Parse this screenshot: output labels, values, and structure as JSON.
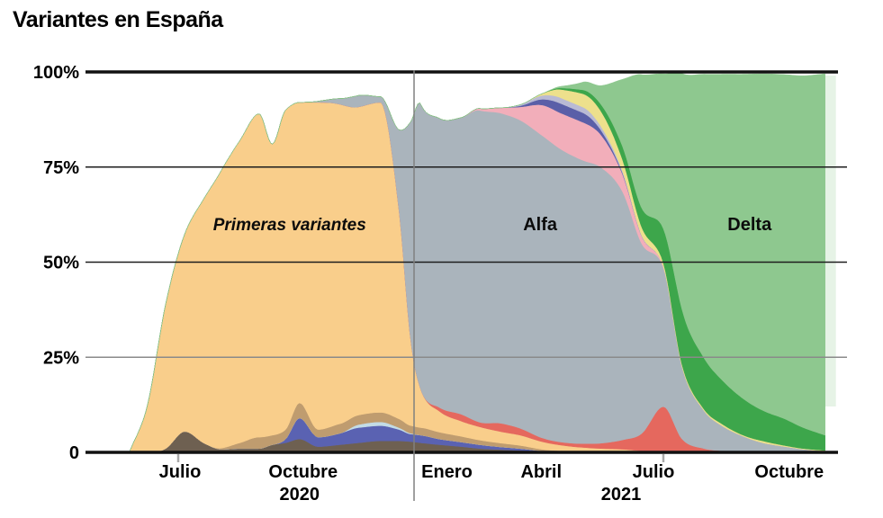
{
  "header": {
    "title": "Variantes en España"
  },
  "chart_data": {
    "type": "area",
    "subtype": "stacked-area-100pct",
    "title": "Variantes en España",
    "xlabel": "",
    "ylabel": "",
    "ylim": [
      0,
      100
    ],
    "grid": true,
    "legend_position": "none",
    "y_axis": {
      "ticks": [
        {
          "label": "100%",
          "pct": 100
        },
        {
          "label": "75%",
          "pct": 75
        },
        {
          "label": "50%",
          "pct": 50
        },
        {
          "label": "25%",
          "pct": 25
        },
        {
          "label": "0",
          "pct": 0
        }
      ]
    },
    "x_axis": {
      "ticks": [
        {
          "label": "Julio",
          "date": "2020-07-01",
          "tick_mark": true
        },
        {
          "label": "Octubre",
          "date": "2020-10-01",
          "tick_mark": false
        },
        {
          "label": "Enero",
          "date": "2021-01-01",
          "tick_mark": false
        },
        {
          "label": "Abril",
          "date": "2021-04-01",
          "tick_mark": false
        },
        {
          "label": "Julio",
          "date": "2021-07-01",
          "tick_mark": true
        },
        {
          "label": "Octubre",
          "date": "2021-10-01",
          "tick_mark": false
        }
      ],
      "year_labels": [
        {
          "text": "2020",
          "date": "2020-10-01"
        },
        {
          "text": "2021",
          "date": "2021-05-30"
        }
      ],
      "year_divider": {
        "date": "2021-01-01"
      }
    },
    "annotations": [
      {
        "text": "Primeras variantes",
        "date": "2020-09-24",
        "pct": 60,
        "italic": true
      },
      {
        "text": "Alfa",
        "date": "2021-03-30",
        "pct": 60,
        "italic": false
      },
      {
        "text": "Delta",
        "date": "2021-09-05",
        "pct": 60,
        "italic": false
      }
    ],
    "dates": [
      "2020-05-25",
      "2020-06-08",
      "2020-06-22",
      "2020-07-06",
      "2020-07-20",
      "2020-08-03",
      "2020-08-17",
      "2020-09-01",
      "2020-09-11",
      "2020-09-21",
      "2020-10-01",
      "2020-10-15",
      "2020-11-01",
      "2020-11-15",
      "2020-12-01",
      "2020-12-15",
      "2020-12-24",
      "2021-01-01",
      "2021-01-15",
      "2021-02-01",
      "2021-02-15",
      "2021-03-01",
      "2021-03-15",
      "2021-04-01",
      "2021-04-15",
      "2021-05-01",
      "2021-05-15",
      "2021-06-01",
      "2021-06-15",
      "2021-07-01",
      "2021-07-15",
      "2021-08-01",
      "2021-08-15",
      "2021-09-01",
      "2021-09-15",
      "2021-10-01",
      "2021-10-15",
      "2021-11-01"
    ],
    "units": "percent of sequenced samples",
    "series": [
      {
        "name": "minor_dark_brown",
        "color": "#6E6051",
        "values": [
          0,
          0,
          1,
          5.5,
          2.5,
          0.8,
          1,
          1,
          2,
          2.5,
          3.5,
          1.5,
          2,
          2.5,
          3,
          3,
          2.8,
          2.5,
          2,
          1.5,
          1,
          0.7,
          0.5,
          0.2,
          0.1,
          0,
          0,
          0,
          0,
          0,
          0,
          0,
          0,
          0,
          0,
          0,
          0,
          0
        ]
      },
      {
        "name": "minor_blue_2020",
        "color": "#5A62B2",
        "values": [
          0,
          0,
          0,
          0,
          0,
          0,
          0,
          0,
          0,
          1,
          5.5,
          2.5,
          3,
          4,
          4,
          3,
          2,
          2,
          1.5,
          1.2,
          1,
          0.7,
          0.5,
          0.2,
          0.1,
          0,
          0,
          0,
          0,
          0,
          0,
          0,
          0,
          0,
          0,
          0,
          0,
          0
        ]
      },
      {
        "name": "minor_light_blue",
        "color": "#C3DCE6",
        "values": [
          0,
          0,
          0,
          0,
          0,
          0,
          0,
          0,
          0,
          0,
          0,
          0,
          0,
          0.8,
          1,
          0.5,
          0.2,
          0,
          0,
          0,
          0,
          0,
          0,
          0,
          0,
          0,
          0,
          0,
          0,
          0,
          0,
          0,
          0,
          0,
          0,
          0,
          0,
          0
        ]
      },
      {
        "name": "minor_tan",
        "color": "#BF9C6F",
        "values": [
          0,
          0,
          0,
          0,
          0,
          0.3,
          1.5,
          3,
          2.5,
          2.5,
          4,
          2,
          2.5,
          2.5,
          2.5,
          2.3,
          2,
          2,
          1.8,
          1.5,
          1.2,
          1,
          0.8,
          0.4,
          0.2,
          0.1,
          0,
          0,
          0,
          0,
          0,
          0,
          0,
          0,
          0,
          0,
          0,
          0
        ]
      },
      {
        "name": "primeras_variantes",
        "color": "#F9CE8B",
        "values": [
          0,
          12,
          38,
          52,
          64,
          73,
          79.5,
          85,
          76.5,
          84,
          79,
          86,
          84,
          81,
          81.5,
          55,
          22,
          10,
          5.5,
          4,
          3.5,
          3,
          2.7,
          2,
          1.5,
          1.2,
          1,
          0.8,
          0.4,
          0,
          0,
          0,
          0,
          0,
          0,
          0,
          0,
          0
        ]
      },
      {
        "name": "minor_red",
        "color": "#E5685E",
        "values": [
          0,
          0,
          0,
          0,
          0,
          0,
          0,
          0,
          0,
          0,
          0,
          0,
          0,
          0,
          0,
          0,
          0,
          0,
          1,
          1.8,
          1.2,
          2.2,
          1.8,
          1,
          0.8,
          1,
          1.4,
          2.5,
          4.5,
          12,
          3.5,
          1,
          0.4,
          0.1,
          0,
          0,
          0,
          0
        ]
      },
      {
        "name": "alfa",
        "color": "#AAB4BC",
        "values": [
          0,
          0,
          0,
          0,
          0,
          0,
          0,
          0,
          0,
          0,
          0,
          0.3,
          1.5,
          3,
          1.5,
          21,
          58,
          75,
          76,
          78,
          82,
          81.5,
          81,
          79.5,
          77,
          74.5,
          72.5,
          65,
          50,
          36.5,
          19,
          10,
          6.5,
          4,
          2.5,
          1.5,
          0.8,
          0.3
        ]
      },
      {
        "name": "minor_pink",
        "color": "#F2AEBA",
        "values": [
          0,
          0,
          0,
          0,
          0,
          0,
          0,
          0,
          0,
          0,
          0,
          0,
          0,
          0,
          0,
          0,
          0,
          0,
          0,
          0,
          0.5,
          1.5,
          3.5,
          8,
          9.5,
          10,
          8.5,
          4.5,
          2,
          0.3,
          0,
          0,
          0,
          0,
          0,
          0,
          0,
          0
        ]
      },
      {
        "name": "minor_indigo",
        "color": "#5A5FA8",
        "values": [
          0,
          0,
          0,
          0,
          0,
          0,
          0,
          0,
          0,
          0,
          0,
          0,
          0,
          0,
          0,
          0,
          0,
          0,
          0,
          0,
          0,
          0,
          0.3,
          1.5,
          2.5,
          2.5,
          1.2,
          0.3,
          0,
          0,
          0,
          0,
          0,
          0,
          0,
          0,
          0,
          0
        ]
      },
      {
        "name": "minor_lavender",
        "color": "#B9BAD4",
        "values": [
          0,
          0,
          0,
          0,
          0,
          0,
          0,
          0,
          0,
          0,
          0,
          0,
          0,
          0,
          0,
          0,
          0,
          0,
          0,
          0,
          0,
          0,
          0.3,
          1,
          1.5,
          1.5,
          1,
          0.5,
          0.2,
          0,
          0,
          0,
          0,
          0,
          0,
          0,
          0,
          0
        ]
      },
      {
        "name": "minor_yellow",
        "color": "#EDE08C",
        "values": [
          0,
          0,
          0,
          0,
          0,
          0,
          0,
          0,
          0,
          0,
          0,
          0,
          0,
          0,
          0,
          0,
          0,
          0,
          0,
          0,
          0,
          0,
          0,
          0.5,
          2.2,
          3.5,
          4,
          3,
          2.2,
          1,
          0.6,
          0.4,
          0.5,
          0.3,
          0.5,
          0.3,
          0.2,
          0.2
        ]
      },
      {
        "name": "minor_dark_green",
        "color": "#3DA64B",
        "values": [
          0,
          0,
          0,
          0,
          0,
          0,
          0,
          0,
          0,
          0,
          0,
          0,
          0,
          0,
          0,
          0,
          0,
          0,
          0,
          0,
          0,
          0,
          0,
          0,
          0.4,
          1,
          1.8,
          3.5,
          5,
          9,
          14.5,
          13.5,
          11.5,
          9.5,
          8,
          7,
          5.5,
          4
        ]
      },
      {
        "name": "delta",
        "color": "#8EC88F",
        "values": [
          0,
          0,
          0,
          0,
          0,
          0,
          0,
          0,
          0,
          0,
          0,
          0,
          0,
          0,
          0,
          0,
          0,
          0,
          0,
          0,
          0,
          0,
          0,
          0,
          0.4,
          2,
          5,
          18,
          35,
          40.7,
          62,
          74.5,
          80.5,
          85.5,
          88.5,
          90.5,
          92.5,
          95
        ]
      }
    ]
  }
}
